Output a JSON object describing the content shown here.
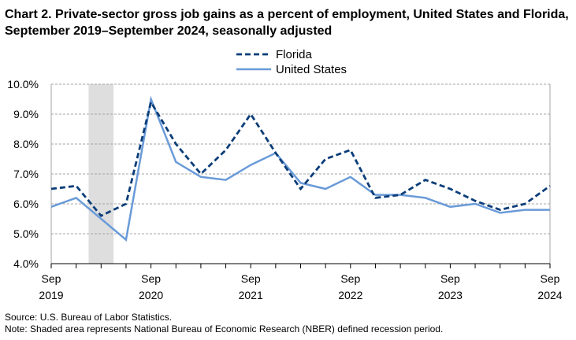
{
  "title": "Chart 2. Private-sector gross job gains as a percent of employment, United States and Florida, September 2019–September 2024, seasonally adjusted",
  "footer": {
    "source": "Source: U.S. Bureau of Labor Statistics.",
    "note": "Note: Shaded area represents National Bureau of Economic Research (NBER) defined recession period."
  },
  "chart_data": {
    "type": "line",
    "title": "Chart 2. Private-sector gross job gains as a percent of employment, United States and Florida, September 2019–September 2024, seasonally adjusted",
    "xlabel": "",
    "ylabel": "",
    "x": [
      "Sep 2019",
      "Dec 2019",
      "Mar 2020",
      "Jun 2020",
      "Sep 2020",
      "Dec 2020",
      "Mar 2021",
      "Jun 2021",
      "Sep 2021",
      "Dec 2021",
      "Mar 2022",
      "Jun 2022",
      "Sep 2022",
      "Dec 2022",
      "Mar 2023",
      "Jun 2023",
      "Sep 2023",
      "Dec 2023",
      "Mar 2024",
      "Jun 2024",
      "Sep 2024"
    ],
    "x_tick_labels": [
      {
        "month": "Sep",
        "year": "2019",
        "index": 0
      },
      {
        "month": "Sep",
        "year": "2020",
        "index": 4
      },
      {
        "month": "Sep",
        "year": "2021",
        "index": 8
      },
      {
        "month": "Sep",
        "year": "2022",
        "index": 12
      },
      {
        "month": "Sep",
        "year": "2023",
        "index": 16
      },
      {
        "month": "Sep",
        "year": "2024",
        "index": 20
      }
    ],
    "yticks": [
      "4.0%",
      "5.0%",
      "6.0%",
      "7.0%",
      "8.0%",
      "9.0%",
      "10.0%"
    ],
    "ylim": [
      4.0,
      10.0
    ],
    "grid": true,
    "legend": "top-center",
    "recession_shading": {
      "from_index": 1.5,
      "to_index": 2.5
    },
    "series": [
      {
        "name": "Florida",
        "color": "#0b3d78",
        "style": "dashed",
        "values": [
          6.5,
          6.6,
          5.6,
          6.0,
          9.4,
          8.0,
          7.0,
          7.8,
          9.0,
          7.7,
          6.5,
          7.5,
          7.8,
          6.2,
          6.3,
          6.8,
          6.5,
          6.1,
          5.8,
          6.0,
          6.6
        ]
      },
      {
        "name": "United States",
        "color": "#6a9bd8",
        "style": "solid",
        "values": [
          5.9,
          6.2,
          5.5,
          4.8,
          9.5,
          7.4,
          6.9,
          6.8,
          7.3,
          7.7,
          6.7,
          6.5,
          6.9,
          6.3,
          6.3,
          6.2,
          5.9,
          6.0,
          5.7,
          5.8,
          5.8
        ]
      }
    ]
  }
}
